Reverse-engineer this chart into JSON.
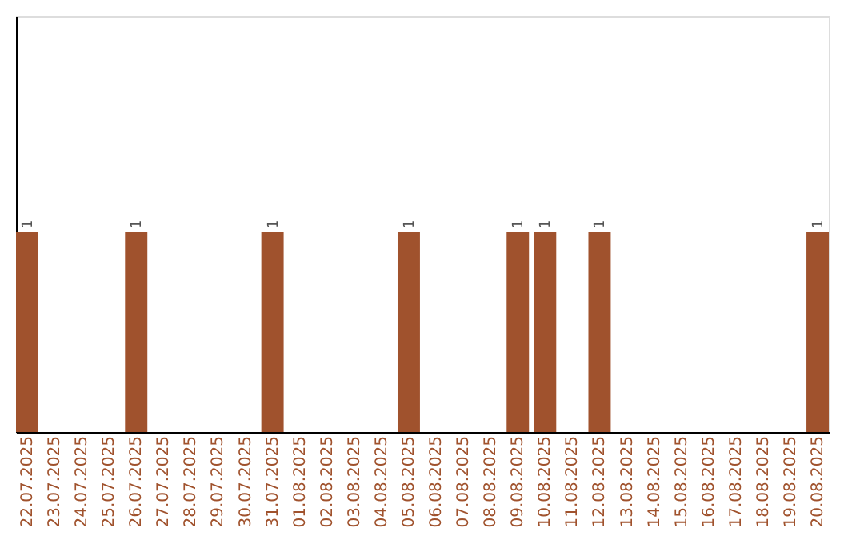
{
  "chart_data": {
    "type": "bar",
    "categories": [
      "22.07.2025",
      "23.07.2025",
      "24.07.2025",
      "25.07.2025",
      "26.07.2025",
      "27.07.2025",
      "28.07.2025",
      "29.07.2025",
      "30.07.2025",
      "31.07.2025",
      "01.08.2025",
      "02.08.2025",
      "03.08.2025",
      "04.08.2025",
      "05.08.2025",
      "06.08.2025",
      "07.08.2025",
      "08.08.2025",
      "09.08.2025",
      "10.08.2025",
      "11.08.2025",
      "12.08.2025",
      "13.08.2025",
      "14.08.2025",
      "15.08.2025",
      "16.08.2025",
      "17.08.2025",
      "18.08.2025",
      "19.08.2025",
      "20.08.2025"
    ],
    "values": [
      1,
      0,
      0,
      0,
      1,
      0,
      0,
      0,
      0,
      1,
      0,
      0,
      0,
      0,
      1,
      0,
      0,
      0,
      1,
      1,
      0,
      1,
      0,
      0,
      0,
      0,
      0,
      0,
      0,
      1
    ],
    "value_labels": [
      "1",
      null,
      null,
      null,
      "1",
      null,
      null,
      null,
      null,
      "1",
      null,
      null,
      null,
      null,
      "1",
      null,
      null,
      null,
      "1",
      "1",
      null,
      "1",
      null,
      null,
      null,
      null,
      null,
      null,
      null,
      "1"
    ],
    "color": "#a0522d",
    "ylim": [
      0,
      2.08
    ],
    "tick_labels": "x",
    "grid": false
  }
}
